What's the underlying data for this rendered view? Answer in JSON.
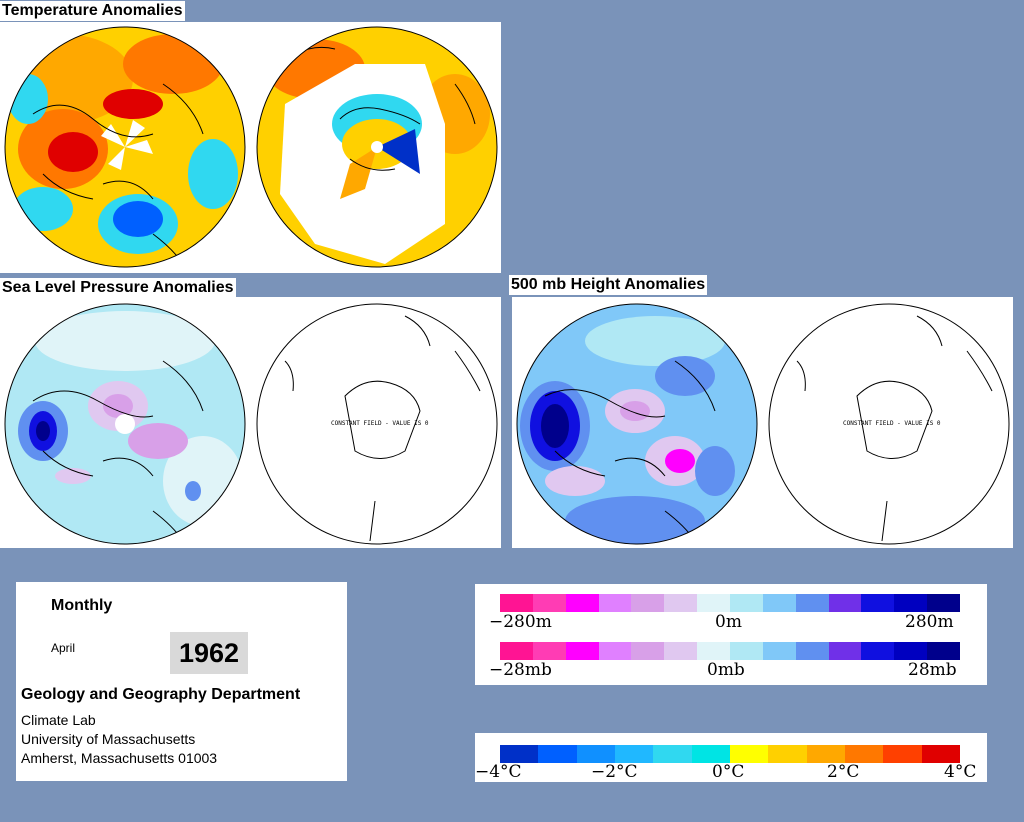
{
  "sections": {
    "temperature": {
      "title": "Temperature Anomalies"
    },
    "slp": {
      "title": "Sea Level Pressure Anomalies",
      "southern_label": "CONSTANT FIELD - VALUE IS 0"
    },
    "height500": {
      "title": "500 mb Height Anomalies",
      "southern_label": "CONSTANT FIELD - VALUE IS 0"
    }
  },
  "info": {
    "period": "Monthly",
    "month": "April",
    "year": "1962",
    "department": "Geology and Geography Department",
    "lines": [
      "Climate Lab",
      "University of Massachusetts",
      "Amherst, Massachusetts 01003"
    ]
  },
  "legends": {
    "height": {
      "left": "−280m",
      "mid": "0m",
      "right": "280m"
    },
    "pressure": {
      "left": "−28mb",
      "mid": "0mb",
      "right": "28mb"
    },
    "temperature": {
      "labels": [
        "−4°C",
        "−2°C",
        "0°C",
        "2°C",
        "4°C"
      ]
    }
  },
  "colors": {
    "background": "#7a93b9",
    "anomaly_scale": [
      "#ff1493",
      "#ff3cb4",
      "#ff00ff",
      "#e080ff",
      "#d8a0e8",
      "#e0c8f0",
      "#e0f4f8",
      "#b0e8f4",
      "#80c8f8",
      "#6090f0",
      "#7030e8",
      "#1010e0",
      "#0000c0",
      "#00008c"
    ],
    "temperature_scale": [
      "#0030c8",
      "#0060ff",
      "#1090ff",
      "#20b8ff",
      "#30d8f0",
      "#00e4e4",
      "#ffff00",
      "#ffd000",
      "#ffa800",
      "#ff7800",
      "#ff4000",
      "#e00000"
    ]
  }
}
